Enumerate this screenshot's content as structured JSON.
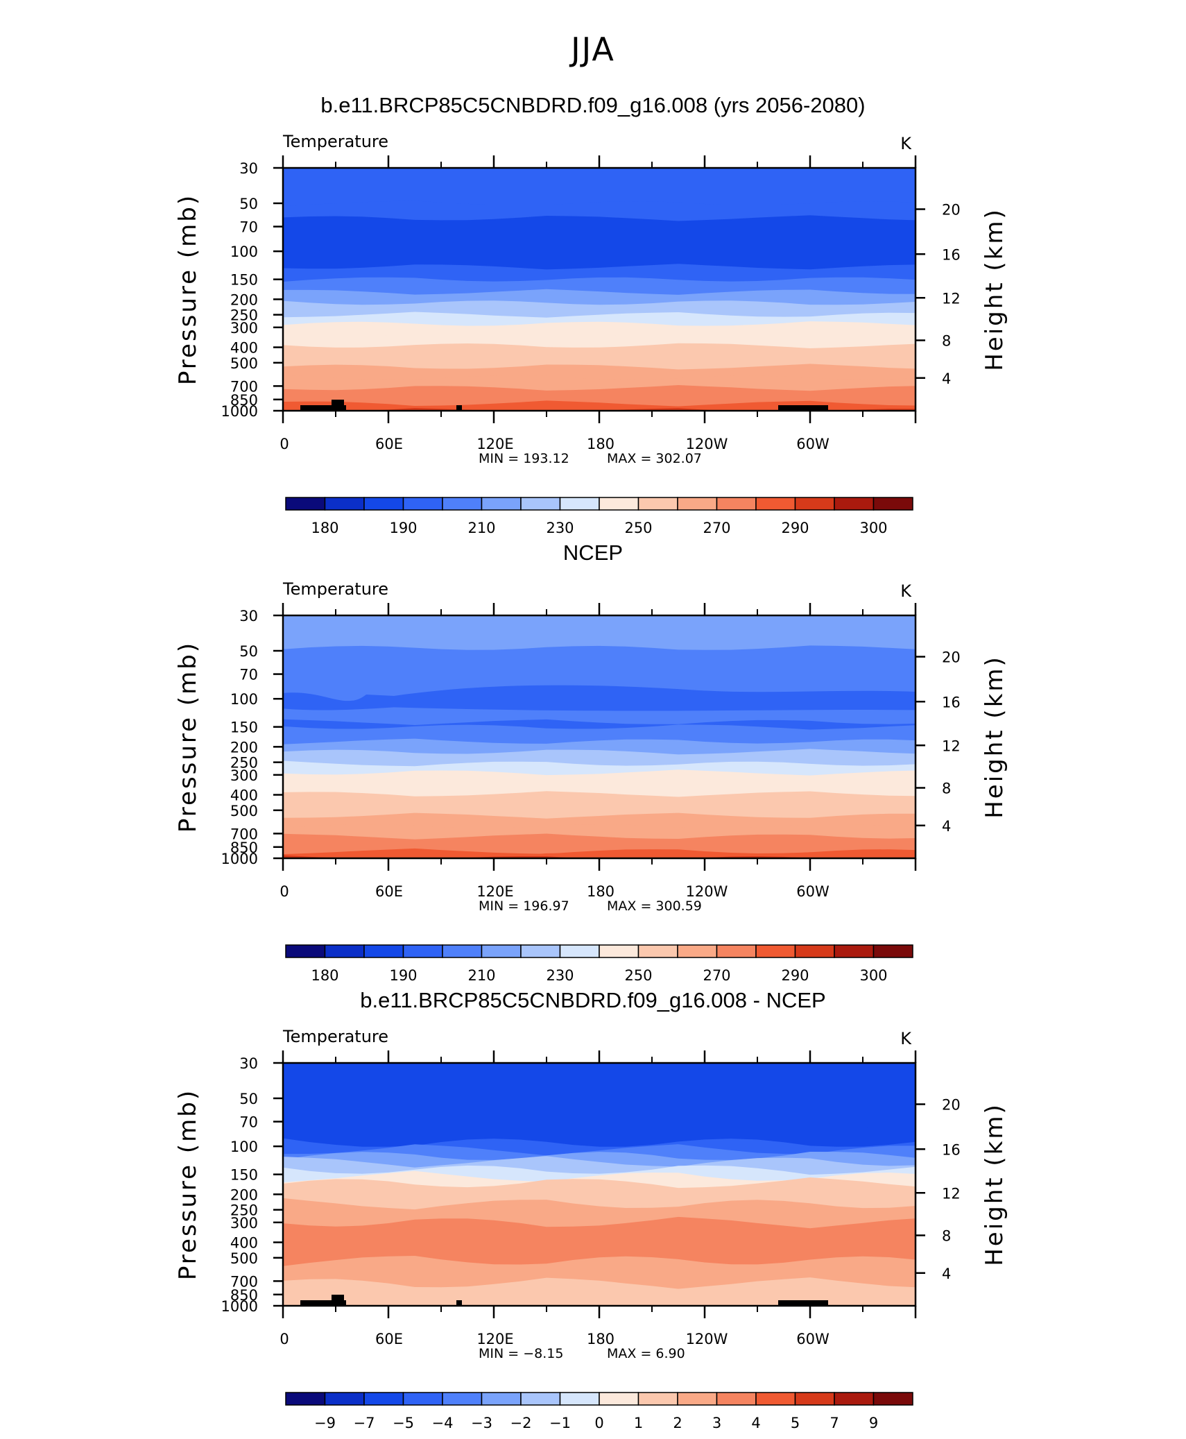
{
  "figure_title": "JJA",
  "chart_data": [
    {
      "type": "heatmap",
      "title": "b.e11.BRCP85C5CNBDRD.f09_g16.008 (yrs 2056-2080)",
      "variable": "Temperature",
      "units": "K",
      "ylabel_left": "Pressure  (mb)",
      "ylabel_right": "Height  (km)",
      "x_ticks": [
        "0",
        "60E",
        "120E",
        "180",
        "120W",
        "60W"
      ],
      "y_ticks": [
        "30",
        "50",
        "70",
        "100",
        "150",
        "200",
        "250",
        "300",
        "400",
        "500",
        "700",
        "850",
        "1000"
      ],
      "right_ticks": [
        "20",
        "16",
        "12",
        "8",
        "4"
      ],
      "min_label": "MIN  =  193.12",
      "max_label": "MAX  =  302.07",
      "min": 193.12,
      "max": 302.07,
      "colorbar_labels": [
        "180",
        "190",
        "210",
        "230",
        "250",
        "270",
        "290",
        "300"
      ],
      "layers": [
        {
          "p": 30,
          "v": 205
        },
        {
          "p": 50,
          "v": 205
        },
        {
          "p": 62,
          "v": 200
        },
        {
          "p": 100,
          "v": 200
        },
        {
          "p": 125,
          "v": 205
        },
        {
          "p": 150,
          "v": 210
        },
        {
          "p": 180,
          "v": 215
        },
        {
          "p": 210,
          "v": 225
        },
        {
          "p": 250,
          "v": 235
        },
        {
          "p": 285,
          "v": 245
        },
        {
          "p": 330,
          "v": 250
        },
        {
          "p": 390,
          "v": 255
        },
        {
          "p": 460,
          "v": 260
        },
        {
          "p": 530,
          "v": 265
        },
        {
          "p": 620,
          "v": 270
        },
        {
          "p": 720,
          "v": 275
        },
        {
          "p": 820,
          "v": 280
        },
        {
          "p": 900,
          "v": 285
        },
        {
          "p": 950,
          "v": 290
        },
        {
          "p": 1000,
          "v": 295
        }
      ],
      "terrain": true
    },
    {
      "type": "heatmap",
      "title": "NCEP",
      "variable": "Temperature",
      "units": "K",
      "ylabel_left": "Pressure  (mb)",
      "ylabel_right": "Height  (km)",
      "x_ticks": [
        "0",
        "60E",
        "120E",
        "180",
        "120W",
        "60W"
      ],
      "y_ticks": [
        "30",
        "50",
        "70",
        "100",
        "150",
        "200",
        "250",
        "300",
        "400",
        "500",
        "700",
        "850",
        "1000"
      ],
      "right_ticks": [
        "20",
        "16",
        "12",
        "8",
        "4"
      ],
      "min_label": "MIN  =  196.97",
      "max_label": "MAX  =  300.59",
      "min": 196.97,
      "max": 300.59,
      "colorbar_labels": [
        "180",
        "190",
        "210",
        "230",
        "250",
        "270",
        "290",
        "300"
      ],
      "layers": [
        {
          "p": 30,
          "v": 215
        },
        {
          "p": 48,
          "v": 210
        },
        {
          "p": 140,
          "v": 205
        },
        {
          "p": 150,
          "v": 210
        },
        {
          "p": 185,
          "v": 215
        },
        {
          "p": 215,
          "v": 225
        },
        {
          "p": 255,
          "v": 235
        },
        {
          "p": 290,
          "v": 245
        },
        {
          "p": 335,
          "v": 250
        },
        {
          "p": 395,
          "v": 255
        },
        {
          "p": 465,
          "v": 260
        },
        {
          "p": 540,
          "v": 265
        },
        {
          "p": 630,
          "v": 270
        },
        {
          "p": 730,
          "v": 275
        },
        {
          "p": 830,
          "v": 280
        },
        {
          "p": 905,
          "v": 285
        },
        {
          "p": 955,
          "v": 290
        },
        {
          "p": 1000,
          "v": 295
        }
      ],
      "blob": {
        "p_top": 85,
        "p_bot": 120,
        "v": 200
      },
      "terrain": false
    },
    {
      "type": "heatmap",
      "title": "b.e11.BRCP85C5CNBDRD.f09_g16.008 - NCEP",
      "variable": "Temperature",
      "units": "K",
      "ylabel_left": "Pressure  (mb)",
      "ylabel_right": "Height  (km)",
      "x_ticks": [
        "0",
        "60E",
        "120E",
        "180",
        "120W",
        "60W"
      ],
      "y_ticks": [
        "30",
        "50",
        "70",
        "100",
        "150",
        "200",
        "250",
        "300",
        "400",
        "500",
        "700",
        "850",
        "1000"
      ],
      "right_ticks": [
        "20",
        "16",
        "12",
        "8",
        "4"
      ],
      "min_label": "MIN  =    −8.15",
      "max_label": "MAX  =       6.90",
      "min": -8.15,
      "max": 6.9,
      "colorbar_labels": [
        "−9",
        "−7",
        "−5",
        "−4",
        "−3",
        "−2",
        "−1",
        "0",
        "1",
        "2",
        "3",
        "4",
        "5",
        "7",
        "9"
      ],
      "layers": [
        {
          "p": 30,
          "v": -7
        },
        {
          "p": 75,
          "v": -6
        },
        {
          "p": 95,
          "v": -4.5
        },
        {
          "p": 105,
          "v": -3.5
        },
        {
          "p": 115,
          "v": -2.5
        },
        {
          "p": 125,
          "v": -1.5
        },
        {
          "p": 140,
          "v": -0.5
        },
        {
          "p": 155,
          "v": 0.5
        },
        {
          "p": 170,
          "v": 1.5
        },
        {
          "p": 230,
          "v": 2.5
        },
        {
          "p": 300,
          "v": 3.5
        },
        {
          "p": 520,
          "v": 2.5
        },
        {
          "p": 720,
          "v": 1.5
        },
        {
          "p": 1000,
          "v": 1.5
        }
      ],
      "terrain": true
    }
  ]
}
